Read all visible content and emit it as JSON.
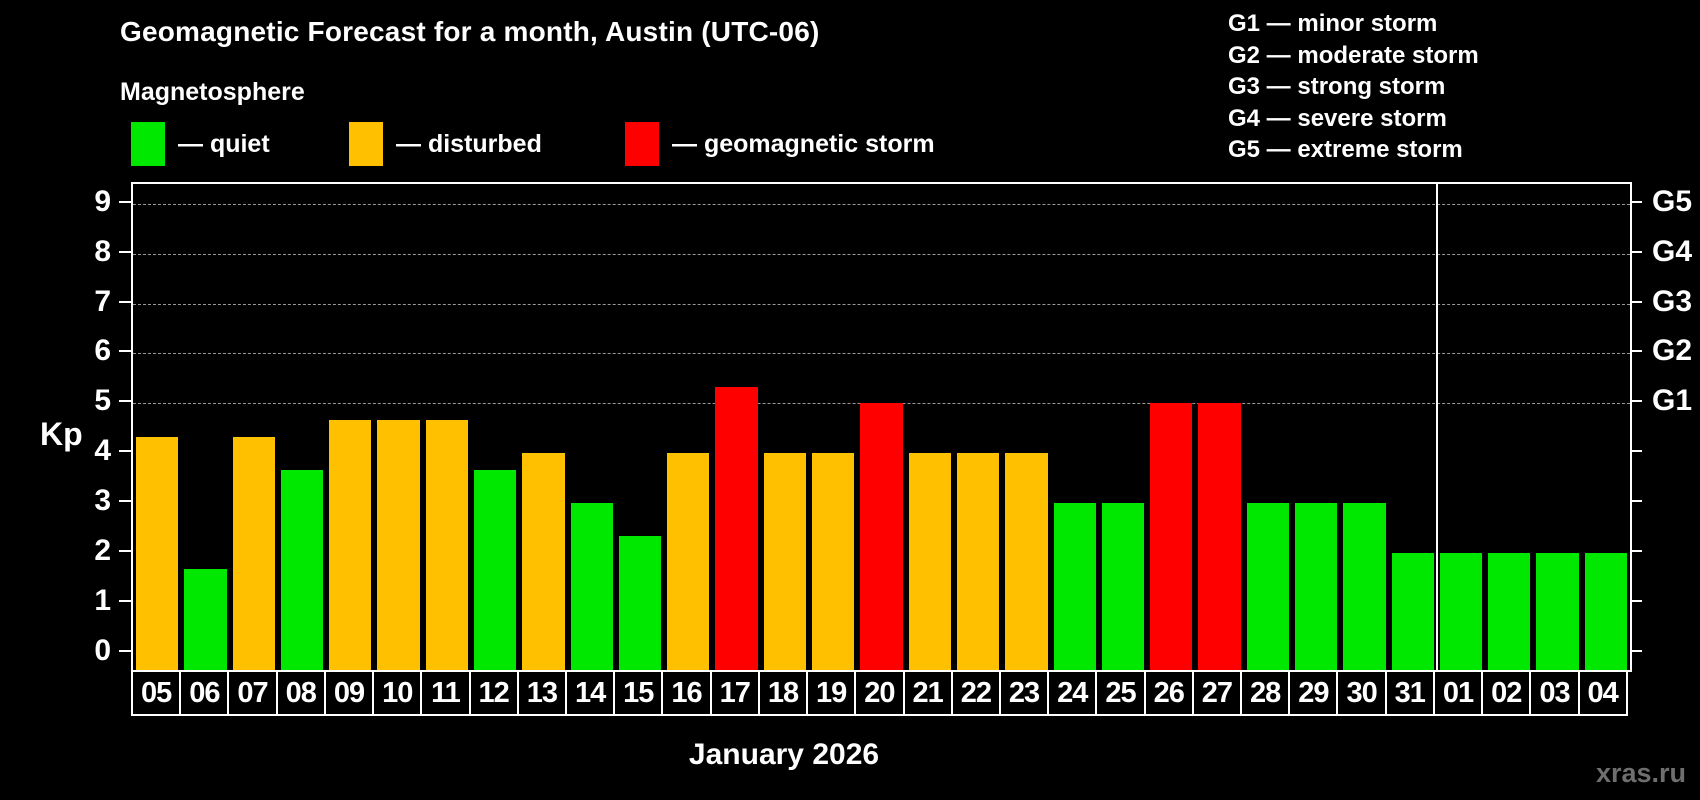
{
  "header": {
    "title": "Geomagnetic Forecast for a month, Austin (UTC-06)",
    "subtitle": "Magnetosphere"
  },
  "legend": {
    "items": [
      {
        "key": "quiet",
        "label": "— quiet",
        "color": "#00e800",
        "x": 131
      },
      {
        "key": "disturbed",
        "label": "— disturbed",
        "color": "#ffc000",
        "x": 349
      },
      {
        "key": "storm",
        "label": "— geomagnetic storm",
        "color": "#ff0000",
        "x": 625
      }
    ]
  },
  "g_legend": {
    "lines": [
      "G1 — minor storm",
      "G2 — moderate storm",
      "G3 — strong storm",
      "G4 — severe storm",
      "G5 — extreme storm"
    ]
  },
  "axes": {
    "left_label": "Kp",
    "left_ticks": [
      0,
      1,
      2,
      3,
      4,
      5,
      6,
      7,
      8,
      9
    ],
    "right_ticks": [
      0,
      1,
      2,
      3,
      4,
      5,
      6,
      7,
      8,
      9
    ],
    "right_labels": [
      {
        "kp": 5,
        "label": "G1"
      },
      {
        "kp": 6,
        "label": "G2"
      },
      {
        "kp": 7,
        "label": "G3"
      },
      {
        "kp": 8,
        "label": "G4"
      },
      {
        "kp": 9,
        "label": "G5"
      }
    ],
    "x_title": "January 2026"
  },
  "watermark": "xras.ru",
  "chart_data": {
    "type": "bar",
    "title": "Geomagnetic Forecast for a month, Austin (UTC-06)",
    "xlabel": "January 2026",
    "ylabel": "Kp",
    "ylim": [
      0,
      9
    ],
    "view_ylim": [
      -0.35,
      9.4
    ],
    "grid": "dashed horizontal at Kp 5-9 only",
    "gridlines_kp": [
      5,
      6,
      7,
      8,
      9
    ],
    "categories": [
      "05",
      "06",
      "07",
      "08",
      "09",
      "10",
      "11",
      "12",
      "13",
      "14",
      "15",
      "16",
      "17",
      "18",
      "19",
      "20",
      "21",
      "22",
      "23",
      "24",
      "25",
      "26",
      "27",
      "28",
      "29",
      "30",
      "31",
      "01",
      "02",
      "03",
      "04"
    ],
    "values": [
      4.33,
      1.67,
      4.33,
      3.67,
      4.67,
      4.67,
      4.67,
      3.67,
      4,
      3,
      2.33,
      4,
      5.33,
      4,
      4,
      5,
      4,
      4,
      4,
      3,
      3,
      5,
      5,
      3,
      3,
      3,
      2,
      2,
      2,
      2,
      2
    ],
    "statuses": [
      "disturbed",
      "quiet",
      "disturbed",
      "quiet",
      "disturbed",
      "disturbed",
      "disturbed",
      "quiet",
      "disturbed",
      "quiet",
      "quiet",
      "disturbed",
      "storm",
      "disturbed",
      "disturbed",
      "storm",
      "disturbed",
      "disturbed",
      "disturbed",
      "quiet",
      "quiet",
      "storm",
      "storm",
      "quiet",
      "quiet",
      "quiet",
      "quiet",
      "quiet",
      "quiet",
      "quiet",
      "quiet"
    ],
    "colors": {
      "quiet": "#00e800",
      "disturbed": "#ffc000",
      "storm": "#ff0000"
    },
    "month_separator_after": "31",
    "legend_position": "top-left",
    "background": "#000000"
  }
}
